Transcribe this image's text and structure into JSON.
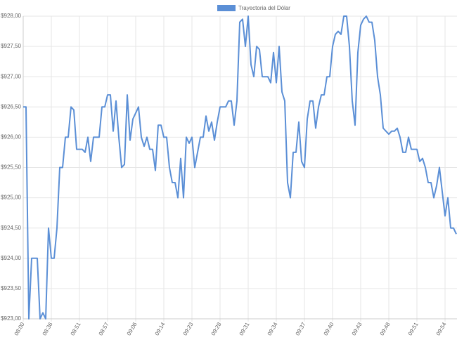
{
  "chart_data": {
    "type": "line",
    "categories": [
      "08:00",
      null,
      null,
      null,
      null,
      null,
      null,
      null,
      null,
      null,
      "08:36",
      null,
      null,
      null,
      null,
      null,
      null,
      null,
      null,
      null,
      "08:51",
      null,
      null,
      null,
      null,
      null,
      null,
      null,
      null,
      null,
      "08:57",
      null,
      null,
      null,
      null,
      null,
      null,
      null,
      null,
      null,
      "09:06",
      null,
      null,
      null,
      null,
      null,
      null,
      null,
      null,
      null,
      "09:14",
      null,
      null,
      null,
      null,
      null,
      null,
      null,
      null,
      null,
      "09:23",
      null,
      null,
      null,
      null,
      null,
      null,
      null,
      null,
      null,
      "09:28",
      null,
      null,
      null,
      null,
      null,
      null,
      null,
      null,
      null,
      "09:31",
      null,
      null,
      null,
      null,
      null,
      null,
      null,
      null,
      null,
      "09:34",
      null,
      null,
      null,
      null,
      null,
      null,
      null,
      null,
      null,
      "09:37",
      null,
      null,
      null,
      null,
      null,
      null,
      null,
      null,
      null,
      "09:40",
      null,
      null,
      null,
      null,
      null,
      null,
      null,
      null,
      null,
      "09:43",
      null,
      null,
      null,
      null,
      null,
      null,
      null,
      null,
      null,
      "09:48",
      null,
      null,
      null,
      null,
      null,
      null,
      null,
      null,
      null,
      "09:51",
      null,
      null,
      null,
      null,
      null,
      null,
      null,
      null,
      null,
      "09:54",
      null,
      null,
      null,
      null
    ],
    "series": [
      {
        "name": "Trayectoria del Dólar",
        "color": "#5b8fd6",
        "values": [
          926.5,
          926.5,
          923.0,
          924.0,
          924.0,
          924.0,
          923.0,
          923.1,
          923.0,
          924.5,
          924.0,
          924.0,
          924.5,
          925.5,
          925.5,
          926.0,
          926.0,
          926.5,
          926.45,
          925.8,
          925.8,
          925.8,
          925.75,
          926.0,
          925.6,
          926.0,
          926.0,
          926.0,
          926.5,
          926.5,
          926.7,
          926.7,
          926.1,
          926.6,
          926.0,
          925.5,
          925.55,
          926.7,
          925.95,
          926.3,
          926.4,
          926.5,
          926.0,
          925.85,
          926.0,
          925.8,
          925.8,
          925.45,
          926.2,
          926.2,
          926.0,
          926.0,
          925.5,
          925.25,
          925.25,
          925.0,
          925.65,
          925.0,
          926.0,
          925.9,
          926.0,
          925.5,
          925.75,
          926.0,
          926.0,
          926.35,
          926.1,
          926.25,
          925.95,
          926.25,
          926.5,
          926.5,
          926.5,
          926.6,
          926.6,
          926.2,
          926.6,
          927.9,
          927.95,
          927.5,
          928.0,
          927.2,
          927.0,
          927.5,
          927.45,
          927.0,
          927.0,
          927.0,
          926.9,
          927.4,
          926.9,
          927.5,
          926.75,
          926.6,
          925.25,
          925.0,
          925.75,
          925.75,
          926.25,
          925.6,
          925.5,
          926.3,
          926.6,
          926.6,
          926.15,
          926.5,
          926.7,
          926.7,
          927.0,
          927.0,
          927.5,
          927.7,
          927.75,
          927.7,
          928.0,
          928.0,
          927.5,
          926.6,
          926.2,
          927.4,
          927.85,
          927.95,
          928.0,
          927.9,
          927.9,
          927.6,
          927.0,
          926.7,
          926.15,
          926.1,
          926.05,
          926.1,
          926.1,
          926.15,
          926.0,
          925.75,
          925.75,
          926.0,
          925.8,
          925.8,
          925.8,
          925.6,
          925.65,
          925.5,
          925.25,
          925.25,
          925.0,
          925.2,
          925.5,
          925.1,
          924.7,
          925.0,
          924.5,
          924.5,
          924.4
        ]
      }
    ],
    "ylim": [
      923,
      928
    ],
    "yticks": [
      {
        "value": 923,
        "label": "$923,00"
      },
      {
        "value": 923.5,
        "label": "$923,50"
      },
      {
        "value": 924,
        "label": "$924,00"
      },
      {
        "value": 924.5,
        "label": "$924,50"
      },
      {
        "value": 925,
        "label": "$925,00"
      },
      {
        "value": 925.5,
        "label": "$925,50"
      },
      {
        "value": 926,
        "label": "$926,00"
      },
      {
        "value": 926.5,
        "label": "$926,50"
      },
      {
        "value": 927,
        "label": "$927,00"
      },
      {
        "value": 927.5,
        "label": "$927,50"
      },
      {
        "value": 928,
        "label": "$928,00"
      }
    ],
    "grid": true
  }
}
